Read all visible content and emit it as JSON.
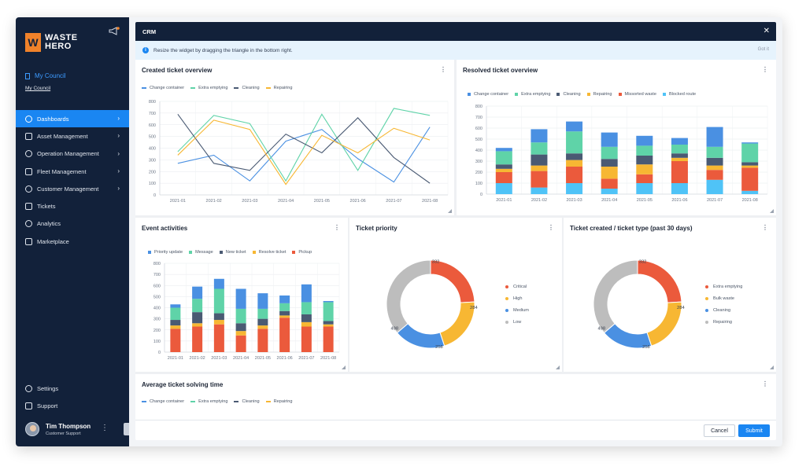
{
  "brand": {
    "mark": "W",
    "name": "WASTE\nHERO"
  },
  "icons": {
    "notification": "megaphone-icon",
    "close": "close-icon",
    "info": "info-icon",
    "menu": "kebab-menu-icon"
  },
  "council": {
    "title": "My Council",
    "link": "My Council"
  },
  "nav": [
    {
      "label": "Dashboards",
      "active": true,
      "has_children": true,
      "icon": "dashboard-icon"
    },
    {
      "label": "Asset Management",
      "has_children": true,
      "icon": "asset-icon"
    },
    {
      "label": "Operation Management",
      "has_children": true,
      "icon": "operation-icon"
    },
    {
      "label": "Fleet Management",
      "has_children": true,
      "icon": "fleet-icon"
    },
    {
      "label": "Customer Management",
      "has_children": true,
      "icon": "customer-icon"
    },
    {
      "label": "Tickets",
      "icon": "ticket-icon"
    },
    {
      "label": "Analytics",
      "icon": "analytics-icon"
    },
    {
      "label": "Marketplace",
      "icon": "marketplace-icon"
    }
  ],
  "bottom_nav": [
    {
      "label": "Settings",
      "icon": "gear-icon"
    },
    {
      "label": "Support",
      "icon": "support-icon"
    }
  ],
  "user": {
    "name": "Tim Thompson",
    "role": "Customer Support"
  },
  "modal": {
    "title": "CRM",
    "info": "Resize the widget by dragging the triangle in the bottom right.",
    "got_it": "Got it",
    "cancel": "Cancel",
    "submit": "Submit"
  },
  "colors": {
    "blue": "#4a90e2",
    "green": "#5fd3a8",
    "navy": "#4a5a73",
    "yellow": "#f7b733",
    "red": "#eb5a3c",
    "cyan": "#4fc3f7",
    "gray": "#bdbdbd",
    "active": "#1a86f2"
  },
  "widgets": {
    "created": {
      "title": "Created ticket overview"
    },
    "resolved": {
      "title": "Resolved ticket overview"
    },
    "events": {
      "title": "Event activities"
    },
    "priority": {
      "title": "Ticket priority"
    },
    "type": {
      "title": "Ticket created / ticket type  (past 30 days)"
    },
    "solving": {
      "title": "Average ticket solving time"
    }
  },
  "chart_data": [
    {
      "id": "created",
      "type": "line",
      "title": "Created ticket overview",
      "categories": [
        "2021-01",
        "2021-02",
        "2021-03",
        "2021-04",
        "2021-05",
        "2021-06",
        "2021-07",
        "2021-08"
      ],
      "ylim": [
        0,
        800
      ],
      "yticks": [
        0,
        100,
        200,
        300,
        400,
        500,
        600,
        700,
        800
      ],
      "grid": true,
      "legend": "top",
      "series": [
        {
          "name": "Change container",
          "color": "#4a90e2",
          "values": [
            270,
            340,
            120,
            460,
            560,
            310,
            110,
            580
          ]
        },
        {
          "name": "Extra emptying",
          "color": "#5fd3a8",
          "values": [
            370,
            680,
            610,
            120,
            690,
            210,
            740,
            680
          ]
        },
        {
          "name": "Cleaning",
          "color": "#4a5a73",
          "values": [
            690,
            270,
            210,
            520,
            360,
            660,
            320,
            100
          ]
        },
        {
          "name": "Repairing",
          "color": "#f7b733",
          "values": [
            340,
            640,
            560,
            90,
            510,
            360,
            570,
            470
          ]
        }
      ]
    },
    {
      "id": "resolved",
      "type": "bar",
      "stacked": true,
      "title": "Resolved ticket overview",
      "categories": [
        "2021-01",
        "2021-02",
        "2021-03",
        "2021-04",
        "2021-05",
        "2021-06",
        "2021-07",
        "2021-08"
      ],
      "ylim": [
        0,
        800
      ],
      "yticks": [
        0,
        100,
        200,
        300,
        400,
        500,
        600,
        700,
        800
      ],
      "grid": true,
      "legend": "top",
      "series": [
        {
          "name": "Blocked route",
          "color": "#4fc3f7",
          "values": [
            100,
            60,
            100,
            50,
            100,
            100,
            130,
            30
          ]
        },
        {
          "name": "Missorted waste",
          "color": "#eb5a3c",
          "values": [
            100,
            150,
            150,
            90,
            80,
            200,
            90,
            210
          ]
        },
        {
          "name": "Repairing",
          "color": "#f7b733",
          "values": [
            30,
            50,
            60,
            110,
            90,
            30,
            40,
            20
          ]
        },
        {
          "name": "Cleaning",
          "color": "#4a5a73",
          "values": [
            40,
            100,
            60,
            70,
            80,
            40,
            70,
            30
          ]
        },
        {
          "name": "Extra emptying",
          "color": "#5fd3a8",
          "values": [
            120,
            110,
            200,
            110,
            90,
            80,
            100,
            170
          ]
        },
        {
          "name": "Change container",
          "color": "#4a90e2",
          "values": [
            30,
            120,
            90,
            130,
            90,
            60,
            180,
            10
          ]
        }
      ]
    },
    {
      "id": "events",
      "type": "bar",
      "stacked": true,
      "title": "Event activities",
      "categories": [
        "2021-01",
        "2021-02",
        "2021-03",
        "2021-04",
        "2021-05",
        "2021-06",
        "2021-07",
        "2021-08"
      ],
      "ylim": [
        0,
        800
      ],
      "yticks": [
        0,
        100,
        200,
        300,
        400,
        500,
        600,
        700,
        800
      ],
      "grid": true,
      "legend": "top",
      "series": [
        {
          "name": "Pickup",
          "color": "#eb5a3c",
          "values": [
            210,
            230,
            250,
            150,
            210,
            310,
            230,
            230
          ]
        },
        {
          "name": "Resolve ticket",
          "color": "#f7b733",
          "values": [
            30,
            30,
            40,
            40,
            30,
            20,
            40,
            20
          ]
        },
        {
          "name": "New ticket",
          "color": "#4a5a73",
          "values": [
            50,
            100,
            60,
            70,
            60,
            40,
            70,
            30
          ]
        },
        {
          "name": "Message",
          "color": "#5fd3a8",
          "values": [
            110,
            120,
            220,
            130,
            90,
            70,
            110,
            170
          ]
        },
        {
          "name": "Priority update",
          "color": "#4a90e2",
          "values": [
            30,
            110,
            90,
            180,
            140,
            70,
            160,
            10
          ]
        }
      ]
    },
    {
      "id": "priority",
      "type": "pie",
      "donut": true,
      "title": "Ticket priority",
      "legend": "right",
      "series": [
        {
          "name": "Critical",
          "color": "#eb5a3c",
          "value": 332
        },
        {
          "name": "High",
          "color": "#f7b733",
          "value": 284
        },
        {
          "name": "Medium",
          "color": "#4a90e2",
          "value": 258
        },
        {
          "name": "Low",
          "color": "#bdbdbd",
          "value": 498
        }
      ]
    },
    {
      "id": "type",
      "type": "pie",
      "donut": true,
      "title": "Ticket created / ticket type  (past 30 days)",
      "legend": "right",
      "series": [
        {
          "name": "Extra emptying",
          "color": "#eb5a3c",
          "value": 332
        },
        {
          "name": "Bulk waste",
          "color": "#f7b733",
          "value": 284
        },
        {
          "name": "Cleaning",
          "color": "#4a90e2",
          "value": 258
        },
        {
          "name": "Repairing",
          "color": "#bdbdbd",
          "value": 498
        }
      ]
    },
    {
      "id": "solving",
      "type": "line",
      "title": "Average ticket solving time",
      "legend": "top",
      "series": [
        {
          "name": "Change container",
          "color": "#4a90e2"
        },
        {
          "name": "Extra emptying",
          "color": "#5fd3a8"
        },
        {
          "name": "Cleaning",
          "color": "#4a5a73"
        },
        {
          "name": "Repairing",
          "color": "#f7b733"
        }
      ]
    }
  ]
}
